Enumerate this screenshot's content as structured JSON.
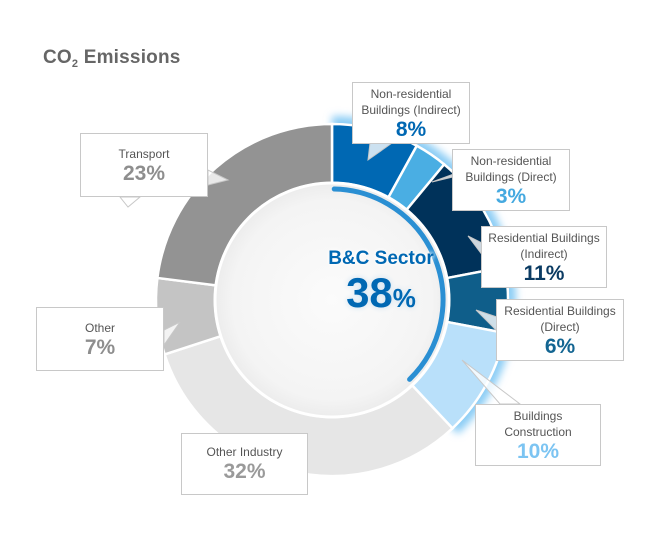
{
  "title": {
    "main": "CO",
    "sub": "2",
    "rest": " Emissions"
  },
  "center": {
    "label": "B&C Sector",
    "value": "38",
    "unit": "%"
  },
  "segments": [
    {
      "label_line1": "Non-residential",
      "label_line2": "Buildings (Indirect)",
      "value": "8%",
      "color": "#0068b3",
      "text_color": "#0068b3"
    },
    {
      "label_line1": "Non-residential",
      "label_line2": "Buildings (Direct)",
      "value": "3%",
      "color": "#4aaee3",
      "text_color": "#45a9e0"
    },
    {
      "label_line1": "Residential Buildings",
      "label_line2": "(Indirect)",
      "value": "11%",
      "color": "#00325a",
      "text_color": "#0b3b63"
    },
    {
      "label_line1": "Residential Buildings",
      "label_line2": "(Direct)",
      "value": "6%",
      "color": "#0f5e8a",
      "text_color": "#136592"
    },
    {
      "label_line1": "Buildings",
      "label_line2": "Construction",
      "value": "10%",
      "color": "#b9e0fa",
      "text_color": "#7cc4f2"
    },
    {
      "label_line1": "Other Industry",
      "label_line2": "",
      "value": "32%",
      "color": "#e6e6e6",
      "text_color": "#9a9a9a"
    },
    {
      "label_line1": "Other",
      "label_line2": "",
      "value": "7%",
      "color": "#c4c4c4",
      "text_color": "#8e8e8e"
    },
    {
      "label_line1": "Transport",
      "label_line2": "",
      "value": "23%",
      "color": "#939393",
      "text_color": "#8e8e8e"
    }
  ],
  "chart_data": {
    "type": "pie",
    "title": "CO2 Emissions",
    "subtitle": "",
    "categories": [
      "Non-residential Buildings (Indirect)",
      "Non-residential Buildings (Direct)",
      "Residential Buildings (Indirect)",
      "Residential Buildings (Direct)",
      "Buildings Construction",
      "Other Industry",
      "Other",
      "Transport"
    ],
    "values": [
      8,
      3,
      11,
      6,
      10,
      32,
      7,
      23
    ],
    "unit": "%",
    "donut": true,
    "start_angle": "12 o'clock, clockwise",
    "annotations": [
      {
        "text": "B&C Sector 38%",
        "position": "center",
        "covers": [
          "Non-residential Buildings (Indirect)",
          "Non-residential Buildings (Direct)",
          "Residential Buildings (Indirect)",
          "Residential Buildings (Direct)",
          "Buildings Construction"
        ]
      }
    ],
    "colors": [
      "#0068b3",
      "#4aaee3",
      "#00325a",
      "#0f5e8a",
      "#b9e0fa",
      "#e6e6e6",
      "#c4c4c4",
      "#939393"
    ],
    "legend": "callout labels"
  }
}
